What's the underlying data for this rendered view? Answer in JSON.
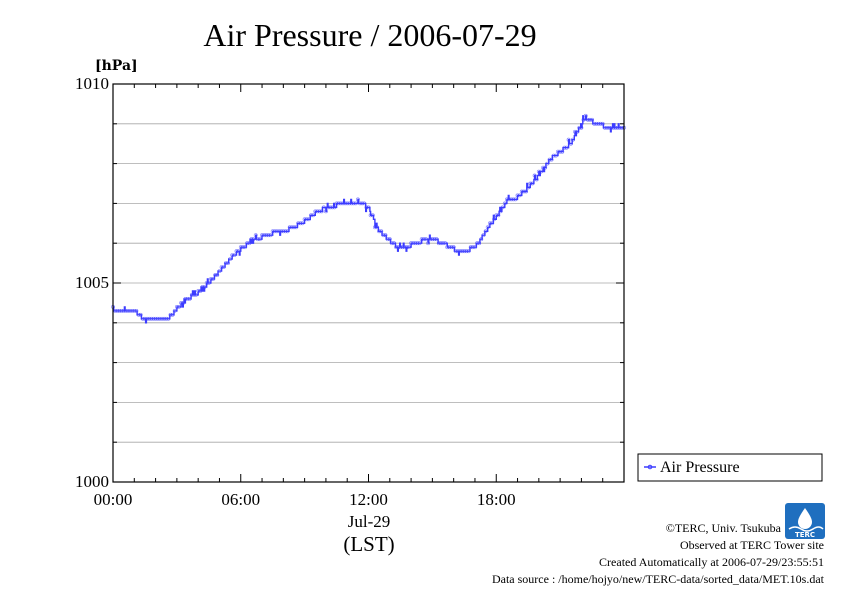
{
  "colors": {
    "series": "#3c3cff",
    "grid": "#a8a8a8",
    "frame": "#000000",
    "logo": "#1f6fbf"
  },
  "chart_data": {
    "type": "line",
    "title": "Air Pressure / 2006-07-29",
    "ylabel": "[hPa]",
    "xlabel": "(LST)",
    "date_label": "Jul-29",
    "ylim": [
      1000,
      1010
    ],
    "xlim_hours": [
      0,
      24
    ],
    "y_ticks": [
      {
        "value": 1000,
        "label": "1000"
      },
      {
        "value": 1005,
        "label": "1005"
      },
      {
        "value": 1010,
        "label": "1010"
      }
    ],
    "y_minor_ticks": [
      1001,
      1002,
      1003,
      1004,
      1006,
      1007,
      1008,
      1009
    ],
    "x_ticks": [
      {
        "hour": 0,
        "label": "00:00"
      },
      {
        "hour": 6,
        "label": "06:00"
      },
      {
        "hour": 12,
        "label": "12:00"
      },
      {
        "hour": 18,
        "label": "18:00"
      }
    ],
    "grid": true,
    "legend": {
      "position": "right",
      "label": "Air Pressure"
    },
    "series": [
      {
        "name": "Air Pressure",
        "hours": [
          0,
          0.5,
          1.0,
          1.2,
          1.5,
          2.0,
          2.5,
          2.8,
          3.0,
          3.5,
          4.0,
          4.5,
          5.0,
          5.5,
          6.0,
          6.5,
          7.0,
          7.5,
          8.0,
          8.5,
          9.0,
          9.5,
          10.0,
          10.5,
          11.0,
          11.5,
          12.0,
          12.5,
          13.0,
          13.5,
          14.0,
          14.5,
          15.0,
          15.5,
          16.0,
          16.5,
          17.0,
          17.5,
          18.0,
          18.5,
          19.0,
          19.5,
          20.0,
          20.5,
          21.0,
          21.5,
          22.0,
          22.2,
          22.5,
          23.0,
          23.5,
          24.0
        ],
        "values": [
          1004.25,
          1004.3,
          1004.3,
          1004.2,
          1004.1,
          1004.05,
          1004.1,
          1004.2,
          1004.35,
          1004.6,
          1004.75,
          1005.0,
          1005.3,
          1005.6,
          1005.85,
          1006.05,
          1006.15,
          1006.25,
          1006.3,
          1006.4,
          1006.55,
          1006.75,
          1006.9,
          1006.95,
          1007.0,
          1007.05,
          1006.9,
          1006.3,
          1006.05,
          1005.85,
          1005.95,
          1006.05,
          1006.1,
          1006.0,
          1005.85,
          1005.8,
          1005.9,
          1006.3,
          1006.65,
          1007.05,
          1007.15,
          1007.4,
          1007.7,
          1008.1,
          1008.3,
          1008.5,
          1009.0,
          1009.15,
          1009.05,
          1008.95,
          1008.85,
          1008.85
        ]
      }
    ]
  },
  "footer": {
    "copyright": "©TERC, Univ. Tsukuba",
    "observed": "Observed at TERC Tower site",
    "created": "Created Automatically at 2006-07-29/23:55:51",
    "source": "Data source : /home/hojyo/new/TERC-data/sorted_data/MET.10s.dat"
  },
  "logo": {
    "text": "TERC"
  }
}
